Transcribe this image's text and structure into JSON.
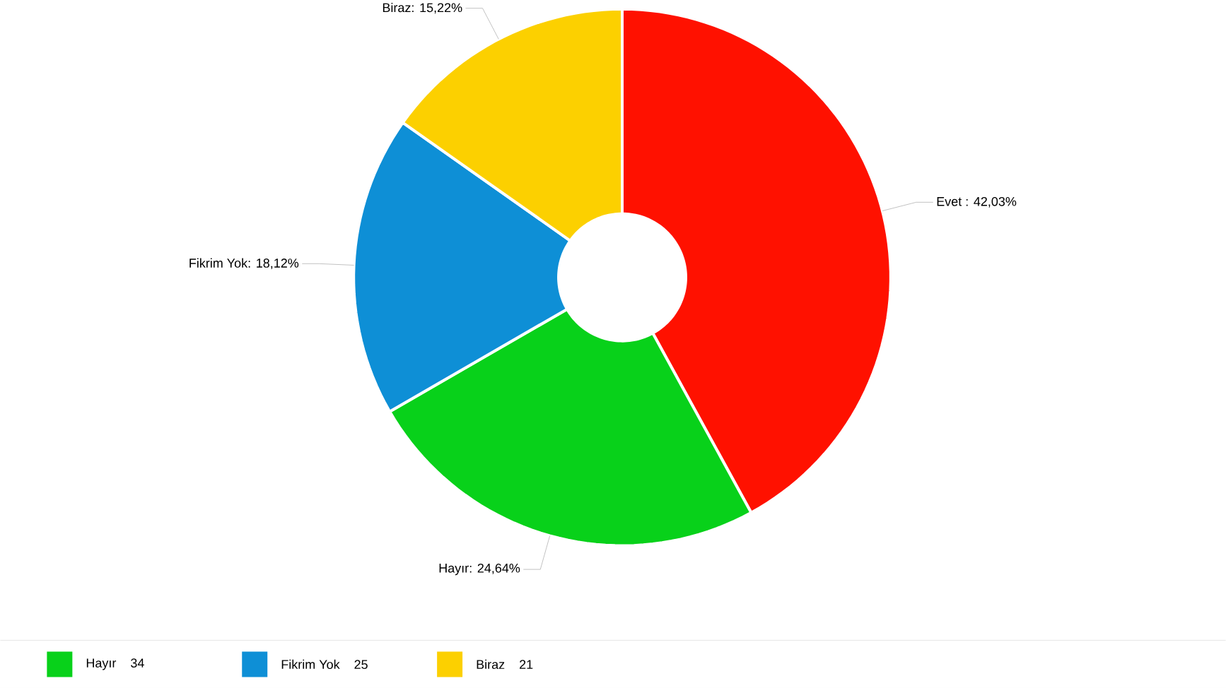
{
  "chart_data": {
    "type": "donut",
    "categories": [
      "Evet",
      "Hayır",
      "Fikrim Yok",
      "Biraz"
    ],
    "values": [
      42.03,
      24.64,
      18.12,
      15.22
    ],
    "colors": [
      "#ff1100",
      "#08d11a",
      "#0e8fd6",
      "#fcd000"
    ],
    "value_labels": [
      " : 42,03%",
      ": 24,64%",
      ": 18,12%",
      ": 15,22%"
    ],
    "legend": "bottom",
    "annotations": [
      "34",
      "25",
      "21"
    ]
  }
}
